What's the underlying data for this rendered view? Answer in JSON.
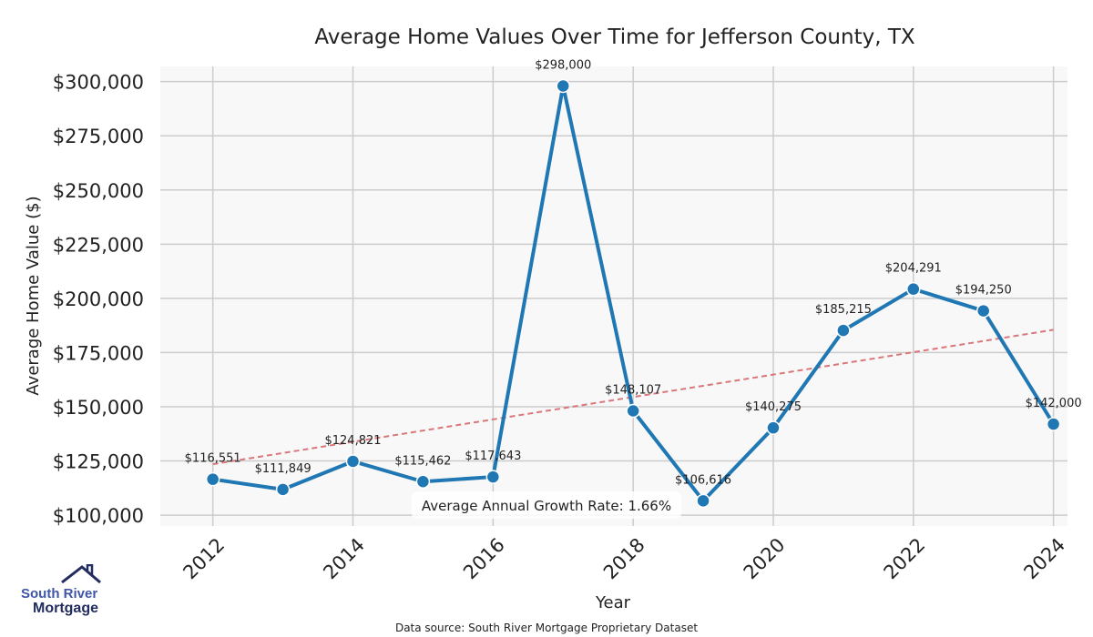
{
  "chart_data": {
    "type": "line",
    "title": "Average Home Values Over Time for Jefferson County, TX",
    "xlabel": "Year",
    "ylabel": "Average Home Value ($)",
    "x": [
      2012,
      2013,
      2014,
      2015,
      2016,
      2017,
      2018,
      2019,
      2020,
      2021,
      2022,
      2023,
      2024
    ],
    "values": [
      116551,
      111849,
      124821,
      115462,
      117643,
      298000,
      148107,
      106616,
      140275,
      185215,
      204291,
      194250,
      142000
    ],
    "data_labels": [
      "$116,551",
      "$111,849",
      "$124,821",
      "$115,462",
      "$117,643",
      "$298,000",
      "$148,107",
      "$106,616",
      "$140,275",
      "$185,215",
      "$204,291",
      "$194,250",
      "$142,000"
    ],
    "xticks": [
      "2012",
      "2014",
      "2016",
      "2018",
      "2020",
      "2022",
      "2024"
    ],
    "xtick_values": [
      2012,
      2014,
      2016,
      2018,
      2020,
      2022,
      2024
    ],
    "yticks": [
      "$100,000",
      "$125,000",
      "$150,000",
      "$175,000",
      "$200,000",
      "$225,000",
      "$250,000",
      "$275,000",
      "$300,000"
    ],
    "ytick_values": [
      100000,
      125000,
      150000,
      175000,
      200000,
      225000,
      250000,
      275000,
      300000
    ],
    "ylim": [
      95000,
      307000
    ],
    "xlim": [
      2011.25,
      2024.2
    ],
    "trend": {
      "x": [
        2012,
        2024
      ],
      "y": [
        123500,
        185500
      ]
    },
    "annotation": "Average Annual Growth Rate: 1.66%",
    "grid": true,
    "colors": {
      "line": "#1f77b4",
      "trend": "#d9777a",
      "plot_bg": "#f8f8f8",
      "grid": "#cccccc"
    }
  },
  "source": "Data source: South River Mortgage Proprietary Dataset",
  "logo": {
    "line1": "South River",
    "line2": "Mortgage"
  }
}
